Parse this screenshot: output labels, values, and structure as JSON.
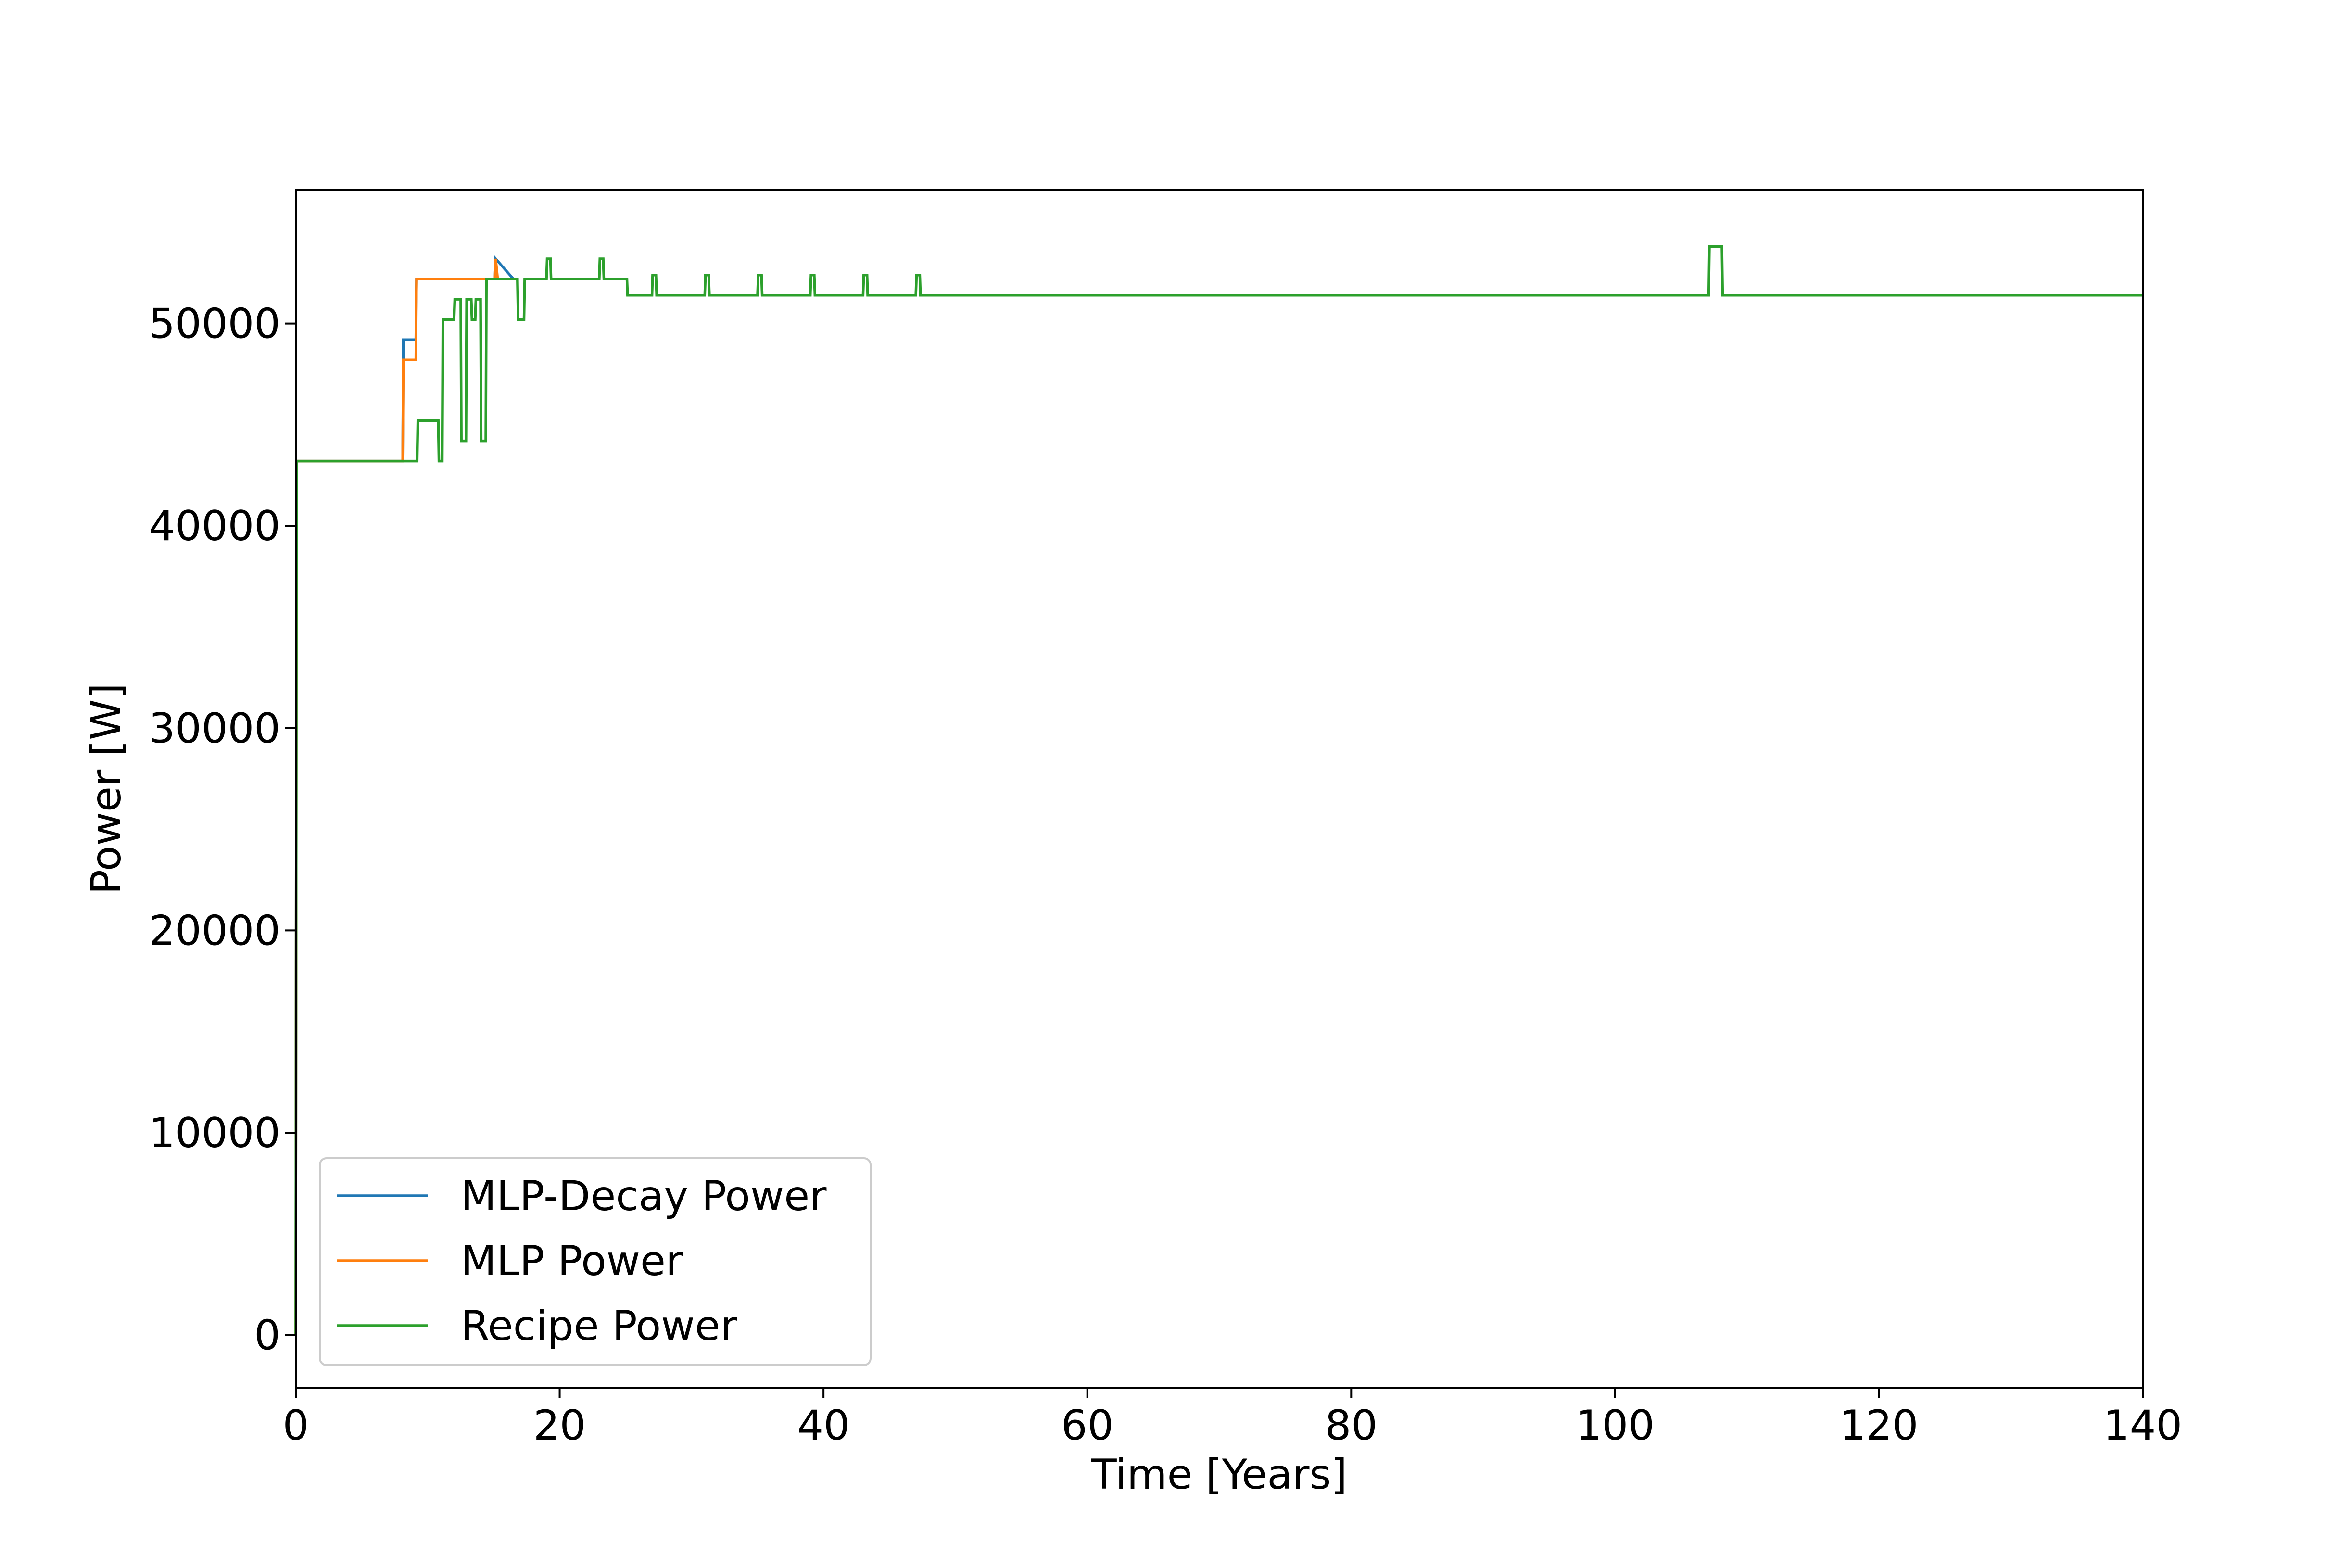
{
  "chart_data": {
    "type": "line",
    "title": "",
    "xlabel": "Time [Years]",
    "ylabel": "Power [W]",
    "xlim": [
      0,
      140
    ],
    "ylim": [
      -2600,
      56600
    ],
    "xticks": [
      0,
      20,
      40,
      60,
      80,
      100,
      120,
      140
    ],
    "yticks": [
      0,
      10000,
      20000,
      30000,
      40000,
      50000
    ],
    "grid": false,
    "legend_position": "lower-left",
    "series": [
      {
        "name": "MLP-Decay Power",
        "color": "#1f77b4",
        "x": [
          0,
          0.05,
          8.1,
          8.15,
          9.1,
          9.15,
          15.1,
          15.15,
          16.5
        ],
        "y": [
          0,
          43200,
          43200,
          49200,
          49200,
          52200,
          52200,
          53200,
          52200
        ]
      },
      {
        "name": "MLP Power",
        "color": "#ff7f0e",
        "x": [
          0,
          0.05,
          8.1,
          8.15,
          9.1,
          9.15,
          15.1,
          15.15,
          15.3,
          16.5
        ],
        "y": [
          0,
          43200,
          43200,
          48200,
          48200,
          52200,
          52200,
          53200,
          52200,
          52200
        ]
      },
      {
        "name": "Recipe Power",
        "color": "#2ca02c",
        "x": [
          0,
          0.05,
          9.2,
          9.25,
          10.8,
          10.85,
          11.1,
          11.15,
          12.0,
          12.05,
          12.5,
          12.55,
          12.9,
          12.95,
          13.3,
          13.35,
          13.6,
          13.65,
          14.0,
          14.05,
          14.4,
          14.45,
          14.9,
          14.95,
          15.2,
          15.25,
          15.4,
          15.45,
          16.8,
          16.85,
          17.3,
          17.35,
          19.0,
          19.05,
          19.3,
          19.35,
          23.0,
          23.05,
          23.3,
          23.35,
          25.1,
          25.15,
          27.0,
          27.05,
          27.3,
          27.35,
          31.0,
          31.05,
          31.3,
          31.35,
          35.0,
          35.05,
          35.3,
          35.35,
          39.0,
          39.05,
          39.3,
          39.35,
          43.0,
          43.05,
          43.3,
          43.35,
          47.0,
          47.05,
          47.3,
          47.35,
          107.1,
          107.15,
          108.1,
          108.15,
          140
        ],
        "y": [
          0,
          43200,
          43200,
          45200,
          45200,
          43200,
          43200,
          50200,
          50200,
          51200,
          51200,
          44200,
          44200,
          51200,
          51200,
          50200,
          50200,
          51200,
          51200,
          44200,
          44200,
          52200,
          52200,
          52200,
          52200,
          52200,
          52200,
          52200,
          52200,
          50200,
          50200,
          52200,
          52200,
          53200,
          53200,
          52200,
          52200,
          53200,
          53200,
          52200,
          52200,
          51400,
          51400,
          52400,
          52400,
          51400,
          51400,
          52400,
          52400,
          51400,
          51400,
          52400,
          52400,
          51400,
          51400,
          52400,
          52400,
          51400,
          51400,
          52400,
          52400,
          51400,
          51400,
          52400,
          52400,
          51400,
          51400,
          53800,
          53800,
          51400,
          51400
        ]
      }
    ]
  }
}
